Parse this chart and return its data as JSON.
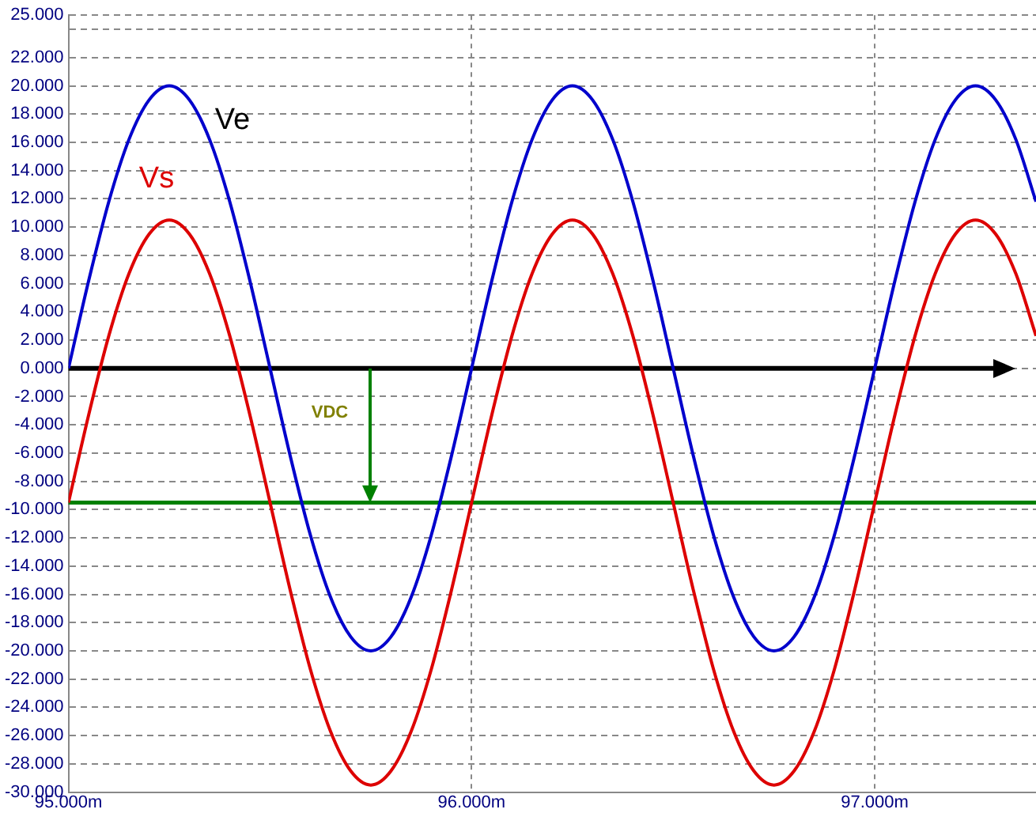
{
  "chart_data": {
    "type": "line",
    "x": [
      95,
      95.05,
      95.1,
      95.15,
      95.2,
      95.25,
      95.3,
      95.35,
      95.4,
      95.45,
      95.5,
      95.55,
      95.6,
      95.65,
      95.7,
      95.75,
      95.8,
      95.85,
      95.9,
      95.95,
      96,
      96.05,
      96.1,
      96.15,
      96.2,
      96.25,
      96.3,
      96.35,
      96.4,
      96.45,
      96.5,
      96.55,
      96.6,
      96.65,
      96.7,
      96.75,
      96.8,
      96.85,
      96.9,
      96.95,
      97,
      97.05,
      97.1,
      97.15,
      97.2,
      97.25,
      97.3,
      97.35,
      97.4
    ],
    "series": [
      {
        "name": "Ve",
        "color": "#0000cc",
        "values": [
          0,
          6.2,
          11.8,
          16.2,
          19,
          20,
          19,
          16.2,
          11.8,
          6.2,
          0,
          -6.2,
          -11.8,
          -16.2,
          -19,
          -20,
          -19,
          -16.2,
          -11.8,
          -6.2,
          0,
          6.2,
          11.8,
          16.2,
          19,
          20,
          19,
          16.2,
          11.8,
          6.2,
          0,
          -6.2,
          -11.8,
          -16.2,
          -19,
          -20,
          -19,
          -16.2,
          -11.8,
          -6.2,
          0,
          6.2,
          11.8,
          16.2,
          19,
          20,
          19,
          16.2,
          11.8
        ]
      },
      {
        "name": "Vs",
        "color": "#dd0000",
        "values": [
          -9.5,
          -3.3,
          2.3,
          6.7,
          9.5,
          10.5,
          9.5,
          6.7,
          2.3,
          -3.3,
          -9.5,
          -15.7,
          -21.3,
          -25.7,
          -28.5,
          -29.5,
          -28.5,
          -25.7,
          -21.3,
          -15.7,
          -9.5,
          -3.3,
          2.3,
          6.7,
          9.5,
          10.5,
          9.5,
          6.7,
          2.3,
          -3.3,
          -9.5,
          -15.7,
          -21.3,
          -25.7,
          -28.5,
          -29.5,
          -28.5,
          -25.7,
          -21.3,
          -15.7,
          -9.5,
          -3.3,
          2.3,
          6.7,
          9.5,
          10.5,
          9.5,
          6.7,
          2.3
        ]
      }
    ],
    "ref_lines": [
      {
        "axis": "y",
        "value": 0,
        "color": "#000000"
      },
      {
        "axis": "y",
        "value": -9.5,
        "color": "#008000"
      }
    ],
    "annotations": [
      "VDC"
    ],
    "xlim": [
      95,
      97.4
    ],
    "xticks": [
      {
        "value": 95,
        "label": "95.000m"
      },
      {
        "value": 96,
        "label": "96.000m"
      },
      {
        "value": 97,
        "label": "97.000m"
      }
    ],
    "ylim": [
      -30,
      25
    ],
    "yticks": [
      {
        "value": -30,
        "label": "-30.000"
      },
      {
        "value": -28,
        "label": "-28.000"
      },
      {
        "value": -26,
        "label": "-26.000"
      },
      {
        "value": -24,
        "label": "-24.000"
      },
      {
        "value": -22,
        "label": "-22.000"
      },
      {
        "value": -20,
        "label": "-20.000"
      },
      {
        "value": -18,
        "label": "-18.000"
      },
      {
        "value": -16,
        "label": "-16.000"
      },
      {
        "value": -14,
        "label": "-14.000"
      },
      {
        "value": -12,
        "label": "-12.000"
      },
      {
        "value": -10,
        "label": "-10.000"
      },
      {
        "value": -8,
        "label": "-8.000"
      },
      {
        "value": -6,
        "label": "-6.000"
      },
      {
        "value": -4,
        "label": "-4.000"
      },
      {
        "value": -2,
        "label": "-2.000"
      },
      {
        "value": 0,
        "label": "0.000"
      },
      {
        "value": 2,
        "label": "2.000"
      },
      {
        "value": 4,
        "label": "4.000"
      },
      {
        "value": 6,
        "label": "6.000"
      },
      {
        "value": 8,
        "label": "8.000"
      },
      {
        "value": 10,
        "label": "10.000"
      },
      {
        "value": 12,
        "label": "12.000"
      },
      {
        "value": 14,
        "label": "14.000"
      },
      {
        "value": 16,
        "label": "16.000"
      },
      {
        "value": 18,
        "label": "18.000"
      },
      {
        "value": 20,
        "label": "20.000"
      },
      {
        "value": 22,
        "label": "22.000"
      },
      {
        "value": 24,
        "label": null
      },
      {
        "value": 25,
        "label": "25.000"
      }
    ],
    "grid": true,
    "legend": false,
    "marker": "none",
    "line_style": "solid"
  }
}
